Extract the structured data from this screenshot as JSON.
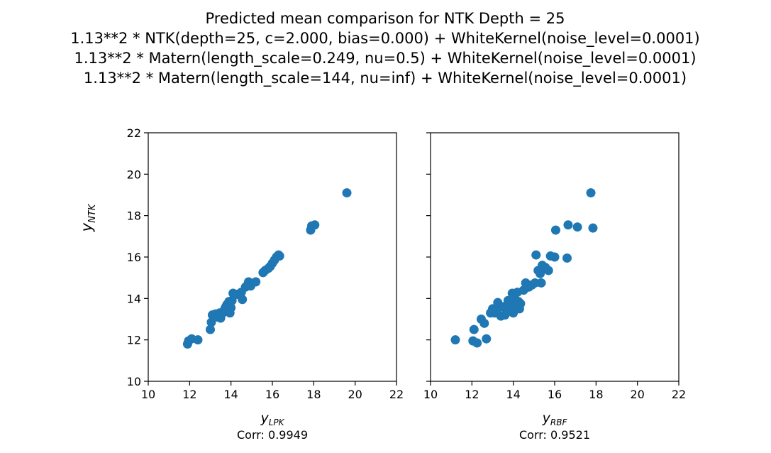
{
  "figure": {
    "title_lines": [
      "Predicted mean comparison for NTK Depth = 25",
      "1.13**2 * NTK(depth=25, c=2.000, bias=0.000) + WhiteKernel(noise_level=0.0001)",
      "1.13**2 * Matern(length_scale=0.249, nu=0.5) + WhiteKernel(noise_level=0.0001)",
      "1.13**2 * Matern(length_scale=144, nu=inf) + WhiteKernel(noise_level=0.0001)"
    ]
  },
  "chart_data": [
    {
      "type": "scatter",
      "xlabel_main": "y",
      "xlabel_sub": "LPK",
      "ylabel_main": "y",
      "ylabel_sub": "NTK",
      "caption": "Corr: 0.9949",
      "xlim": [
        10,
        22
      ],
      "ylim": [
        10,
        22
      ],
      "xticks": [
        10,
        12,
        14,
        16,
        18,
        20,
        22
      ],
      "yticks": [
        10,
        12,
        14,
        16,
        18,
        20,
        22
      ],
      "color": "#1f77b4",
      "points": [
        [
          11.9,
          11.8
        ],
        [
          11.95,
          11.95
        ],
        [
          12.1,
          12.05
        ],
        [
          12.4,
          12.0
        ],
        [
          13.0,
          12.5
        ],
        [
          13.05,
          12.85
        ],
        [
          13.1,
          13.2
        ],
        [
          13.25,
          13.25
        ],
        [
          13.35,
          13.1
        ],
        [
          13.45,
          13.3
        ],
        [
          13.5,
          13.05
        ],
        [
          13.6,
          13.3
        ],
        [
          13.7,
          13.5
        ],
        [
          13.75,
          13.6
        ],
        [
          13.8,
          13.7
        ],
        [
          13.9,
          13.85
        ],
        [
          13.95,
          13.3
        ],
        [
          14.0,
          13.55
        ],
        [
          14.05,
          13.9
        ],
        [
          14.1,
          14.25
        ],
        [
          14.3,
          14.2
        ],
        [
          14.5,
          14.3
        ],
        [
          14.55,
          13.95
        ],
        [
          14.7,
          14.55
        ],
        [
          14.8,
          14.65
        ],
        [
          14.85,
          14.8
        ],
        [
          14.95,
          14.6
        ],
        [
          15.2,
          14.8
        ],
        [
          15.55,
          15.25
        ],
        [
          15.65,
          15.35
        ],
        [
          15.8,
          15.45
        ],
        [
          15.9,
          15.55
        ],
        [
          16.0,
          15.7
        ],
        [
          16.1,
          15.85
        ],
        [
          16.2,
          16.0
        ],
        [
          16.3,
          16.1
        ],
        [
          16.35,
          16.05
        ],
        [
          17.85,
          17.3
        ],
        [
          17.9,
          17.5
        ],
        [
          18.05,
          17.55
        ],
        [
          19.6,
          19.1
        ]
      ]
    },
    {
      "type": "scatter",
      "xlabel_main": "y",
      "xlabel_sub": "RBF",
      "caption": "Corr: 0.9521",
      "xlim": [
        10,
        22
      ],
      "ylim": [
        10,
        22
      ],
      "xticks": [
        10,
        12,
        14,
        16,
        18,
        20,
        22
      ],
      "yticks": [
        10,
        12,
        14,
        16,
        18,
        20,
        22
      ],
      "color": "#1f77b4",
      "points": [
        [
          11.2,
          12.0
        ],
        [
          12.05,
          11.95
        ],
        [
          12.1,
          12.5
        ],
        [
          12.25,
          11.85
        ],
        [
          12.45,
          13.0
        ],
        [
          12.6,
          12.8
        ],
        [
          12.7,
          12.05
        ],
        [
          12.9,
          13.3
        ],
        [
          13.0,
          13.5
        ],
        [
          13.1,
          13.3
        ],
        [
          13.2,
          13.4
        ],
        [
          13.25,
          13.8
        ],
        [
          13.4,
          13.15
        ],
        [
          13.5,
          13.6
        ],
        [
          13.6,
          13.2
        ],
        [
          13.7,
          13.55
        ],
        [
          13.75,
          13.9
        ],
        [
          13.85,
          13.6
        ],
        [
          13.9,
          13.4
        ],
        [
          13.95,
          14.25
        ],
        [
          14.0,
          13.3
        ],
        [
          14.05,
          14.0
        ],
        [
          14.1,
          13.7
        ],
        [
          14.2,
          14.3
        ],
        [
          14.25,
          13.85
        ],
        [
          14.3,
          13.5
        ],
        [
          14.35,
          13.75
        ],
        [
          14.5,
          14.4
        ],
        [
          14.6,
          14.75
        ],
        [
          14.75,
          14.55
        ],
        [
          14.9,
          14.65
        ],
        [
          15.05,
          14.75
        ],
        [
          15.1,
          16.1
        ],
        [
          15.2,
          15.35
        ],
        [
          15.3,
          15.2
        ],
        [
          15.35,
          14.75
        ],
        [
          15.4,
          15.6
        ],
        [
          15.55,
          15.5
        ],
        [
          15.7,
          15.35
        ],
        [
          15.8,
          16.05
        ],
        [
          16.0,
          16.0
        ],
        [
          16.05,
          17.3
        ],
        [
          16.6,
          15.95
        ],
        [
          16.65,
          17.55
        ],
        [
          17.1,
          17.45
        ],
        [
          17.75,
          19.1
        ],
        [
          17.85,
          17.4
        ]
      ]
    }
  ]
}
